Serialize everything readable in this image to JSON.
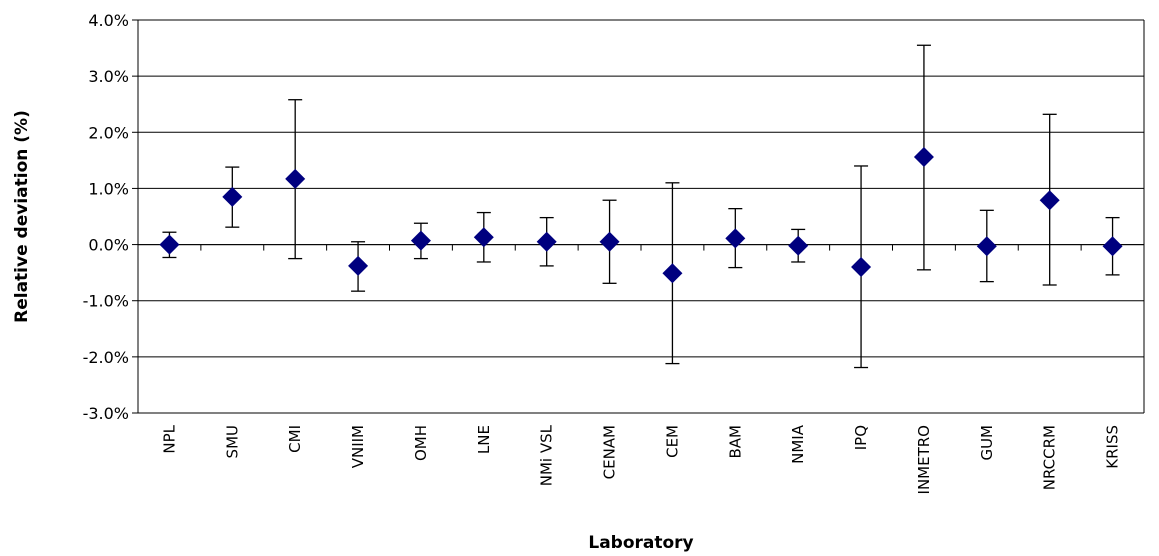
{
  "chart_data": {
    "type": "scatter",
    "title": "",
    "xlabel": "Laboratory",
    "ylabel": "Relative deviation (%)",
    "ylim": [
      -3.0,
      4.0
    ],
    "y_ticks": [
      4.0,
      3.0,
      2.0,
      1.0,
      0.0,
      -1.0,
      -2.0,
      -3.0
    ],
    "y_tick_labels": [
      "4.0%",
      "3.0%",
      "2.0%",
      "1.0%",
      "0.0%",
      "-1.0%",
      "-2.0%",
      "-3.0%"
    ],
    "grid": "horizontal",
    "marker": "diamond",
    "colors": {
      "marker": "#00007F",
      "gridline": "#000000",
      "errorbar": "#000000"
    },
    "categories": [
      "NPL",
      "SMU",
      "CMI",
      "VNIIM",
      "OMH",
      "LNE",
      "NMi VSL",
      "CENAM",
      "CEM",
      "BAM",
      "NMIA",
      "IPQ",
      "INMETRO",
      "GUM",
      "NRCCRM",
      "KRISS"
    ],
    "values": [
      0.0,
      0.85,
      1.17,
      -0.38,
      0.07,
      0.13,
      0.05,
      0.05,
      -0.51,
      0.11,
      -0.02,
      -0.4,
      1.56,
      -0.03,
      0.79,
      -0.03
    ],
    "error_upper": [
      0.22,
      1.38,
      2.58,
      0.05,
      0.38,
      0.57,
      0.48,
      0.79,
      1.1,
      0.64,
      0.27,
      1.4,
      3.55,
      0.61,
      2.32,
      0.48
    ],
    "error_lower": [
      -0.23,
      0.31,
      -0.25,
      -0.83,
      -0.25,
      -0.31,
      -0.38,
      -0.69,
      -2.12,
      -0.41,
      -0.31,
      -2.19,
      -0.45,
      -0.66,
      -0.72,
      -0.54
    ]
  }
}
